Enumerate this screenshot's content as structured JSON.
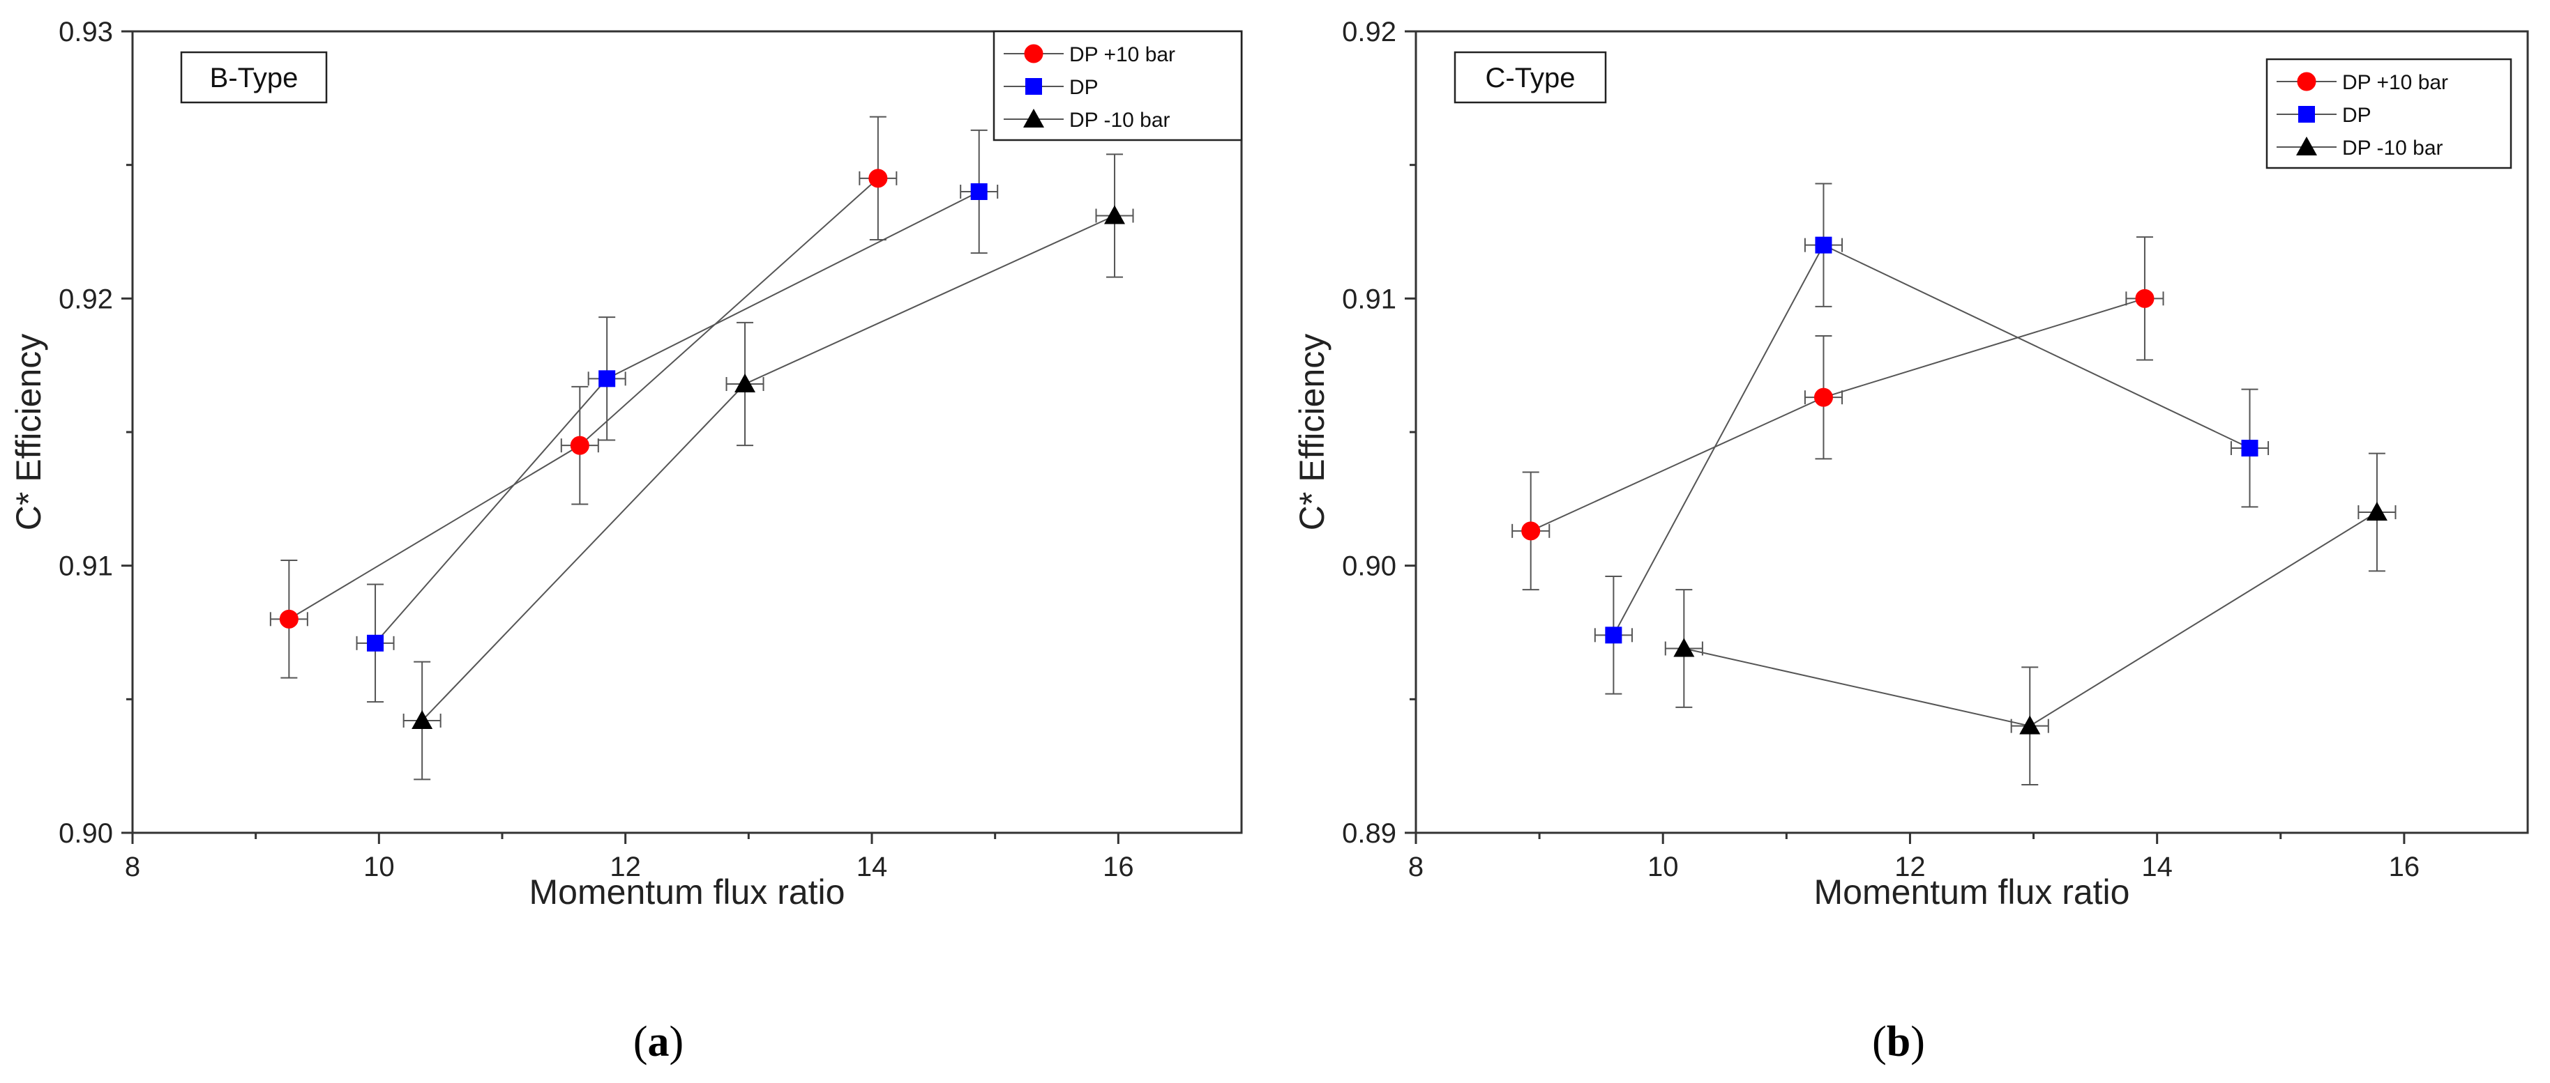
{
  "chart_data": [
    {
      "type": "scatter",
      "panel_label": "a",
      "annotation": "B-Type",
      "xlabel": "Momentum flux ratio",
      "ylabel": "C* Efficiency",
      "xlim": [
        8,
        17
      ],
      "ylim": [
        0.9,
        0.93
      ],
      "x_ticks": [
        8,
        10,
        12,
        14,
        16
      ],
      "y_ticks": [
        0.9,
        0.91,
        0.92,
        0.93
      ],
      "y_tick_labels": [
        "0.90",
        "0.91",
        "0.92",
        "0.93"
      ],
      "legend_position": "top-right",
      "series": [
        {
          "name": "DP +10 bar",
          "marker": "circle",
          "color": "#ff0000",
          "x": [
            9.27,
            11.63,
            14.05
          ],
          "y": [
            0.908,
            0.9145,
            0.9245
          ],
          "y_err": [
            0.0022,
            0.0022,
            0.0023
          ],
          "x_err": [
            0.15,
            0.15,
            0.15
          ]
        },
        {
          "name": "DP",
          "marker": "square",
          "color": "#0000ff",
          "x": [
            9.97,
            11.85,
            14.87
          ],
          "y": [
            0.9071,
            0.917,
            0.924
          ],
          "y_err": [
            0.0022,
            0.0023,
            0.0023
          ],
          "x_err": [
            0.15,
            0.15,
            0.15
          ]
        },
        {
          "name": "DP -10 bar",
          "marker": "triangle",
          "color": "#000000",
          "x": [
            10.35,
            12.97,
            15.97
          ],
          "y": [
            0.9042,
            0.9168,
            0.9231
          ],
          "y_err": [
            0.0022,
            0.0023,
            0.0023
          ],
          "x_err": [
            0.15,
            0.15,
            0.15
          ]
        }
      ]
    },
    {
      "type": "scatter",
      "panel_label": "b",
      "annotation": "C-Type",
      "xlabel": "Momentum flux ratio",
      "ylabel": "C* Efficiency",
      "xlim": [
        8,
        17
      ],
      "ylim": [
        0.89,
        0.92
      ],
      "x_ticks": [
        8,
        10,
        12,
        14,
        16
      ],
      "y_ticks": [
        0.89,
        0.9,
        0.91,
        0.92
      ],
      "y_tick_labels": [
        "0.89",
        "0.90",
        "0.91",
        "0.92"
      ],
      "legend_position": "top-right",
      "series": [
        {
          "name": "DP +10 bar",
          "marker": "circle",
          "color": "#ff0000",
          "x": [
            8.93,
            11.3,
            13.9
          ],
          "y": [
            0.9013,
            0.9063,
            0.91
          ],
          "y_err": [
            0.0022,
            0.0023,
            0.0023
          ],
          "x_err": [
            0.15,
            0.15,
            0.15
          ]
        },
        {
          "name": "DP",
          "marker": "square",
          "color": "#0000ff",
          "x": [
            9.6,
            11.3,
            14.75
          ],
          "y": [
            0.8974,
            0.912,
            0.9044
          ],
          "y_err": [
            0.0022,
            0.0023,
            0.0022
          ],
          "x_err": [
            0.15,
            0.15,
            0.15
          ]
        },
        {
          "name": "DP -10 bar",
          "marker": "triangle",
          "color": "#000000",
          "x": [
            10.17,
            12.97,
            15.78
          ],
          "y": [
            0.8969,
            0.894,
            0.902
          ],
          "y_err": [
            0.0022,
            0.0022,
            0.0022
          ],
          "x_err": [
            0.15,
            0.15,
            0.15
          ]
        }
      ]
    }
  ]
}
